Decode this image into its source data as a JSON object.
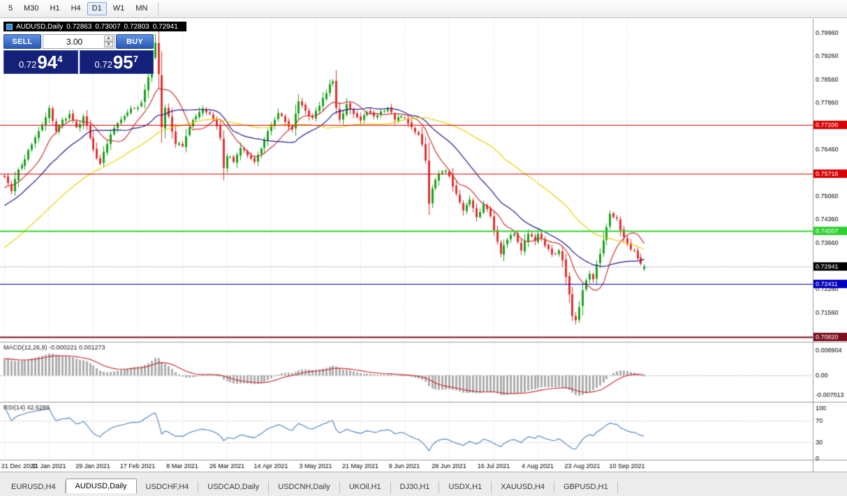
{
  "toolbar": {
    "periods": [
      {
        "label": "5",
        "active": false
      },
      {
        "label": "M30",
        "active": false
      },
      {
        "label": "H1",
        "active": false
      },
      {
        "label": "H4",
        "active": false
      },
      {
        "label": "D1",
        "active": true
      },
      {
        "label": "W1",
        "active": false
      },
      {
        "label": "MN",
        "active": false
      }
    ]
  },
  "chart_header": {
    "symbol": "AUDUSD,Daily",
    "open": "0.72863",
    "high": "0.73007",
    "low": "0.72803",
    "close": "0.72941"
  },
  "trade_panel": {
    "sell_label": "SELL",
    "buy_label": "BUY",
    "volume": "3.00",
    "bid": {
      "prefix": "0.72",
      "big": "94",
      "pip": "4"
    },
    "ask": {
      "prefix": "0.72",
      "big": "95",
      "pip": "7"
    }
  },
  "tabs": [
    {
      "label": "EURUSD,H4",
      "active": false
    },
    {
      "label": "AUDUSD,Daily",
      "active": true
    },
    {
      "label": "USDCHF,H4",
      "active": false
    },
    {
      "label": "USDCAD,Daily",
      "active": false
    },
    {
      "label": "USDCNH,Daily",
      "active": false
    },
    {
      "label": "UKOil,H1",
      "active": false
    },
    {
      "label": "DJ30,H1",
      "active": false
    },
    {
      "label": "USDX,H1",
      "active": false
    },
    {
      "label": "XAUUSD,H4",
      "active": false
    },
    {
      "label": "GBPUSD,H1",
      "active": false
    }
  ],
  "chart_data": {
    "type": "candlestick",
    "symbol": "AUDUSD",
    "timeframe": "Daily",
    "bars_total": 188,
    "layout": {
      "price_max": 0.8017,
      "price_min": 0.7082,
      "grid": "vertical-dotted",
      "right_shift": true
    },
    "up_color": "#18a318",
    "down_color": "#e33030",
    "x_ticks": [
      {
        "bar": 0,
        "label": "21 Dec 2020"
      },
      {
        "bar": 13,
        "label": "11 Jan 2021"
      },
      {
        "bar": 26,
        "label": "29 Jan 2021"
      },
      {
        "bar": 39,
        "label": "17 Feb 2021"
      },
      {
        "bar": 52,
        "label": "8 Mar 2021"
      },
      {
        "bar": 65,
        "label": "26 Mar 2021"
      },
      {
        "bar": 78,
        "label": "14 Apr 2021"
      },
      {
        "bar": 91,
        "label": "3 May 2021"
      },
      {
        "bar": 104,
        "label": "21 May 2021"
      },
      {
        "bar": 117,
        "label": "9 Jun 2021"
      },
      {
        "bar": 130,
        "label": "28 Jun 2021"
      },
      {
        "bar": 143,
        "label": "16 Jul 2021"
      },
      {
        "bar": 156,
        "label": "4 Aug 2021"
      },
      {
        "bar": 169,
        "label": "23 Aug 2021"
      },
      {
        "bar": 182,
        "label": "10 Sep 2021"
      }
    ],
    "price_axis_labels": [
      "0.79960",
      "0.79260",
      "0.78560",
      "0.77860",
      "0.77160",
      "0.76460",
      "0.75760",
      "0.75060",
      "0.74360",
      "0.73660",
      "0.72960",
      "0.72260",
      "0.71560",
      "0.70860"
    ],
    "hlines": [
      {
        "price": 0.772,
        "label": "0.77200",
        "color": "#d80000",
        "width": 1
      },
      {
        "price": 0.75716,
        "label": "0.75716",
        "color": "#d80000",
        "width": 1
      },
      {
        "price": 0.74007,
        "label": "0.74007",
        "color": "#2fd12f",
        "width": 2
      },
      {
        "price": 0.72411,
        "label": "0.72411",
        "color": "#0000c0",
        "width": 1
      },
      {
        "price": 0.7082,
        "label": "0.70820",
        "color": "#7b0f1e",
        "width": 2
      }
    ],
    "current_price": {
      "value": 0.72941,
      "label": "0.72941",
      "tag_bg": "#000000"
    },
    "last_bar_ohlc": [
      0.72863,
      0.73007,
      0.72803,
      0.72941
    ],
    "moving_averages": [
      {
        "type": "sma",
        "period": 10,
        "color": "#cc3333"
      },
      {
        "type": "sma",
        "period": 22,
        "color": "#1b1b8f"
      },
      {
        "type": "sma",
        "period": 50,
        "color": "#e8d200"
      }
    ],
    "close_anchors": [
      [
        0,
        0.7563
      ],
      [
        2,
        0.752
      ],
      [
        4,
        0.7585
      ],
      [
        6,
        0.7616
      ],
      [
        8,
        0.766
      ],
      [
        10,
        0.77
      ],
      [
        12,
        0.7742
      ],
      [
        13,
        0.777
      ],
      [
        15,
        0.77
      ],
      [
        17,
        0.7735
      ],
      [
        19,
        0.7752
      ],
      [
        21,
        0.7712
      ],
      [
        23,
        0.7745
      ],
      [
        25,
        0.768
      ],
      [
        26,
        0.7645
      ],
      [
        28,
        0.7602
      ],
      [
        30,
        0.7662
      ],
      [
        32,
        0.771
      ],
      [
        34,
        0.7735
      ],
      [
        36,
        0.7756
      ],
      [
        38,
        0.777
      ],
      [
        40,
        0.7786
      ],
      [
        42,
        0.7862
      ],
      [
        43,
        0.792
      ],
      [
        44,
        0.7966
      ],
      [
        45,
        0.7872
      ],
      [
        46,
        0.7712
      ],
      [
        47,
        0.777
      ],
      [
        48,
        0.7745
      ],
      [
        50,
        0.7662
      ],
      [
        52,
        0.7655
      ],
      [
        54,
        0.7712
      ],
      [
        56,
        0.7745
      ],
      [
        58,
        0.7768
      ],
      [
        60,
        0.7752
      ],
      [
        62,
        0.7715
      ],
      [
        63,
        0.768
      ],
      [
        64,
        0.759
      ],
      [
        65,
        0.7625
      ],
      [
        67,
        0.7608
      ],
      [
        69,
        0.765
      ],
      [
        71,
        0.7628
      ],
      [
        73,
        0.7608
      ],
      [
        75,
        0.7648
      ],
      [
        77,
        0.77
      ],
      [
        78,
        0.772
      ],
      [
        80,
        0.7755
      ],
      [
        82,
        0.7728
      ],
      [
        84,
        0.7705
      ],
      [
        86,
        0.779
      ],
      [
        88,
        0.7762
      ],
      [
        90,
        0.774
      ],
      [
        91,
        0.7762
      ],
      [
        93,
        0.78
      ],
      [
        95,
        0.7842
      ],
      [
        96,
        0.785
      ],
      [
        97,
        0.777
      ],
      [
        98,
        0.7735
      ],
      [
        100,
        0.7782
      ],
      [
        102,
        0.7752
      ],
      [
        104,
        0.7732
      ],
      [
        106,
        0.7758
      ],
      [
        108,
        0.7745
      ],
      [
        110,
        0.776
      ],
      [
        112,
        0.7768
      ],
      [
        114,
        0.7735
      ],
      [
        116,
        0.7745
      ],
      [
        117,
        0.774
      ],
      [
        119,
        0.7712
      ],
      [
        121,
        0.769
      ],
      [
        122,
        0.766
      ],
      [
        123,
        0.7612
      ],
      [
        124,
        0.7482
      ],
      [
        125,
        0.7528
      ],
      [
        127,
        0.7572
      ],
      [
        129,
        0.7582
      ],
      [
        130,
        0.7565
      ],
      [
        132,
        0.7512
      ],
      [
        134,
        0.7462
      ],
      [
        136,
        0.7495
      ],
      [
        138,
        0.7442
      ],
      [
        140,
        0.7482
      ],
      [
        142,
        0.7445
      ],
      [
        143,
        0.7402
      ],
      [
        144,
        0.7368
      ],
      [
        145,
        0.7332
      ],
      [
        147,
        0.7375
      ],
      [
        149,
        0.7392
      ],
      [
        151,
        0.7342
      ],
      [
        153,
        0.7392
      ],
      [
        155,
        0.737
      ],
      [
        156,
        0.7392
      ],
      [
        158,
        0.7356
      ],
      [
        160,
        0.733
      ],
      [
        162,
        0.7342
      ],
      [
        163,
        0.7312
      ],
      [
        164,
        0.7262
      ],
      [
        165,
        0.721
      ],
      [
        166,
        0.7145
      ],
      [
        167,
        0.7132
      ],
      [
        168,
        0.7172
      ],
      [
        169,
        0.7222
      ],
      [
        170,
        0.7252
      ],
      [
        171,
        0.7272
      ],
      [
        172,
        0.7255
      ],
      [
        173,
        0.73
      ],
      [
        174,
        0.7332
      ],
      [
        175,
        0.7372
      ],
      [
        176,
        0.7412
      ],
      [
        177,
        0.7452
      ],
      [
        178,
        0.7442
      ],
      [
        179,
        0.7438
      ],
      [
        180,
        0.7402
      ],
      [
        181,
        0.7382
      ],
      [
        182,
        0.736
      ],
      [
        183,
        0.7345
      ],
      [
        184,
        0.7342
      ],
      [
        185,
        0.7318
      ],
      [
        186,
        0.7302
      ],
      [
        187,
        0.72941
      ]
    ],
    "macd": {
      "label": "MACD(12,26,9)",
      "main_value": "-0.000221",
      "signal_value": "0.001273",
      "fast": 12,
      "slow": 26,
      "signal": 9,
      "hist_color": "#adadad",
      "signal_color": "#cc2222",
      "axis_labels": [
        {
          "value": 0.008904,
          "label": "0.008904"
        },
        {
          "value": 0,
          "label": "0.00"
        },
        {
          "value": -0.007013,
          "label": "-0.007013"
        }
      ]
    },
    "rsi": {
      "label": "RSI(14)",
      "value": "42.6289",
      "period": 14,
      "color": "#4a7ebb",
      "levels": [
        70,
        30
      ],
      "axis_labels": [
        {
          "value": 100,
          "label": "100"
        },
        {
          "value": 70,
          "label": "70"
        },
        {
          "value": 30,
          "label": "30"
        },
        {
          "value": 0,
          "label": "0"
        }
      ]
    }
  }
}
